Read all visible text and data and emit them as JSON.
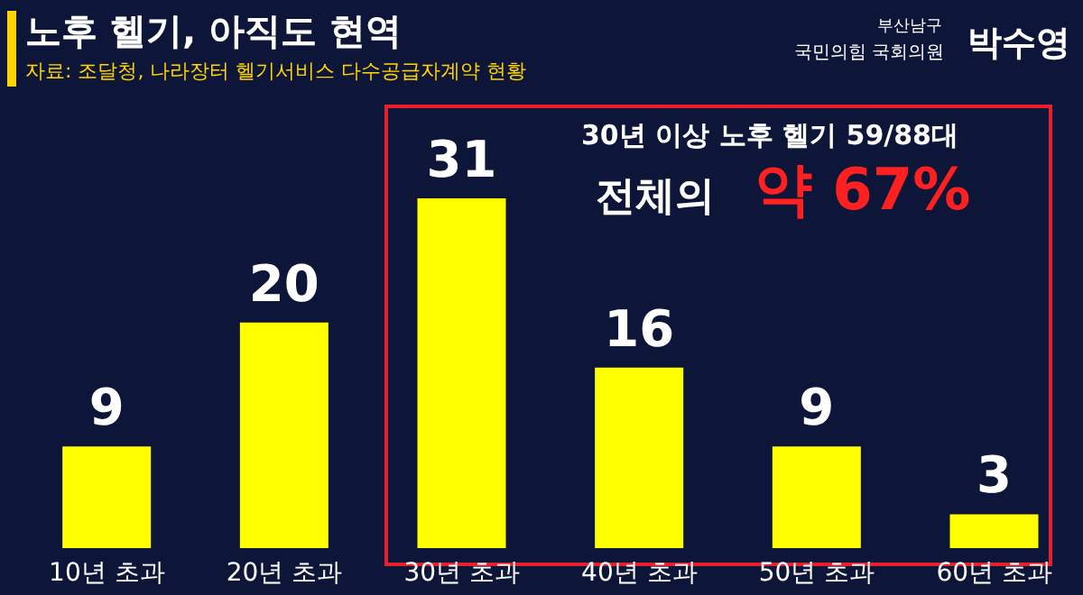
{
  "chart_data": {
    "type": "bar",
    "title": "노후 헬기, 아직도 현역",
    "subtitle": "자료: 조달청, 나라장터 헬기서비스 다수공급자계약 현황",
    "categories": [
      "10년 초과",
      "20년 초과",
      "30년 초과",
      "40년 초과",
      "50년 초과",
      "60년 초과"
    ],
    "values": [
      9,
      20,
      31,
      16,
      9,
      3
    ],
    "color": "#ffff00",
    "data_labels": true,
    "grid": false,
    "legend": false,
    "annotations": [
      "30년 이상 노후 헬기 59/88대",
      "전체의",
      "약 67%",
      "부산남구",
      "국민의힘 국회의원",
      "박수영"
    ]
  }
}
